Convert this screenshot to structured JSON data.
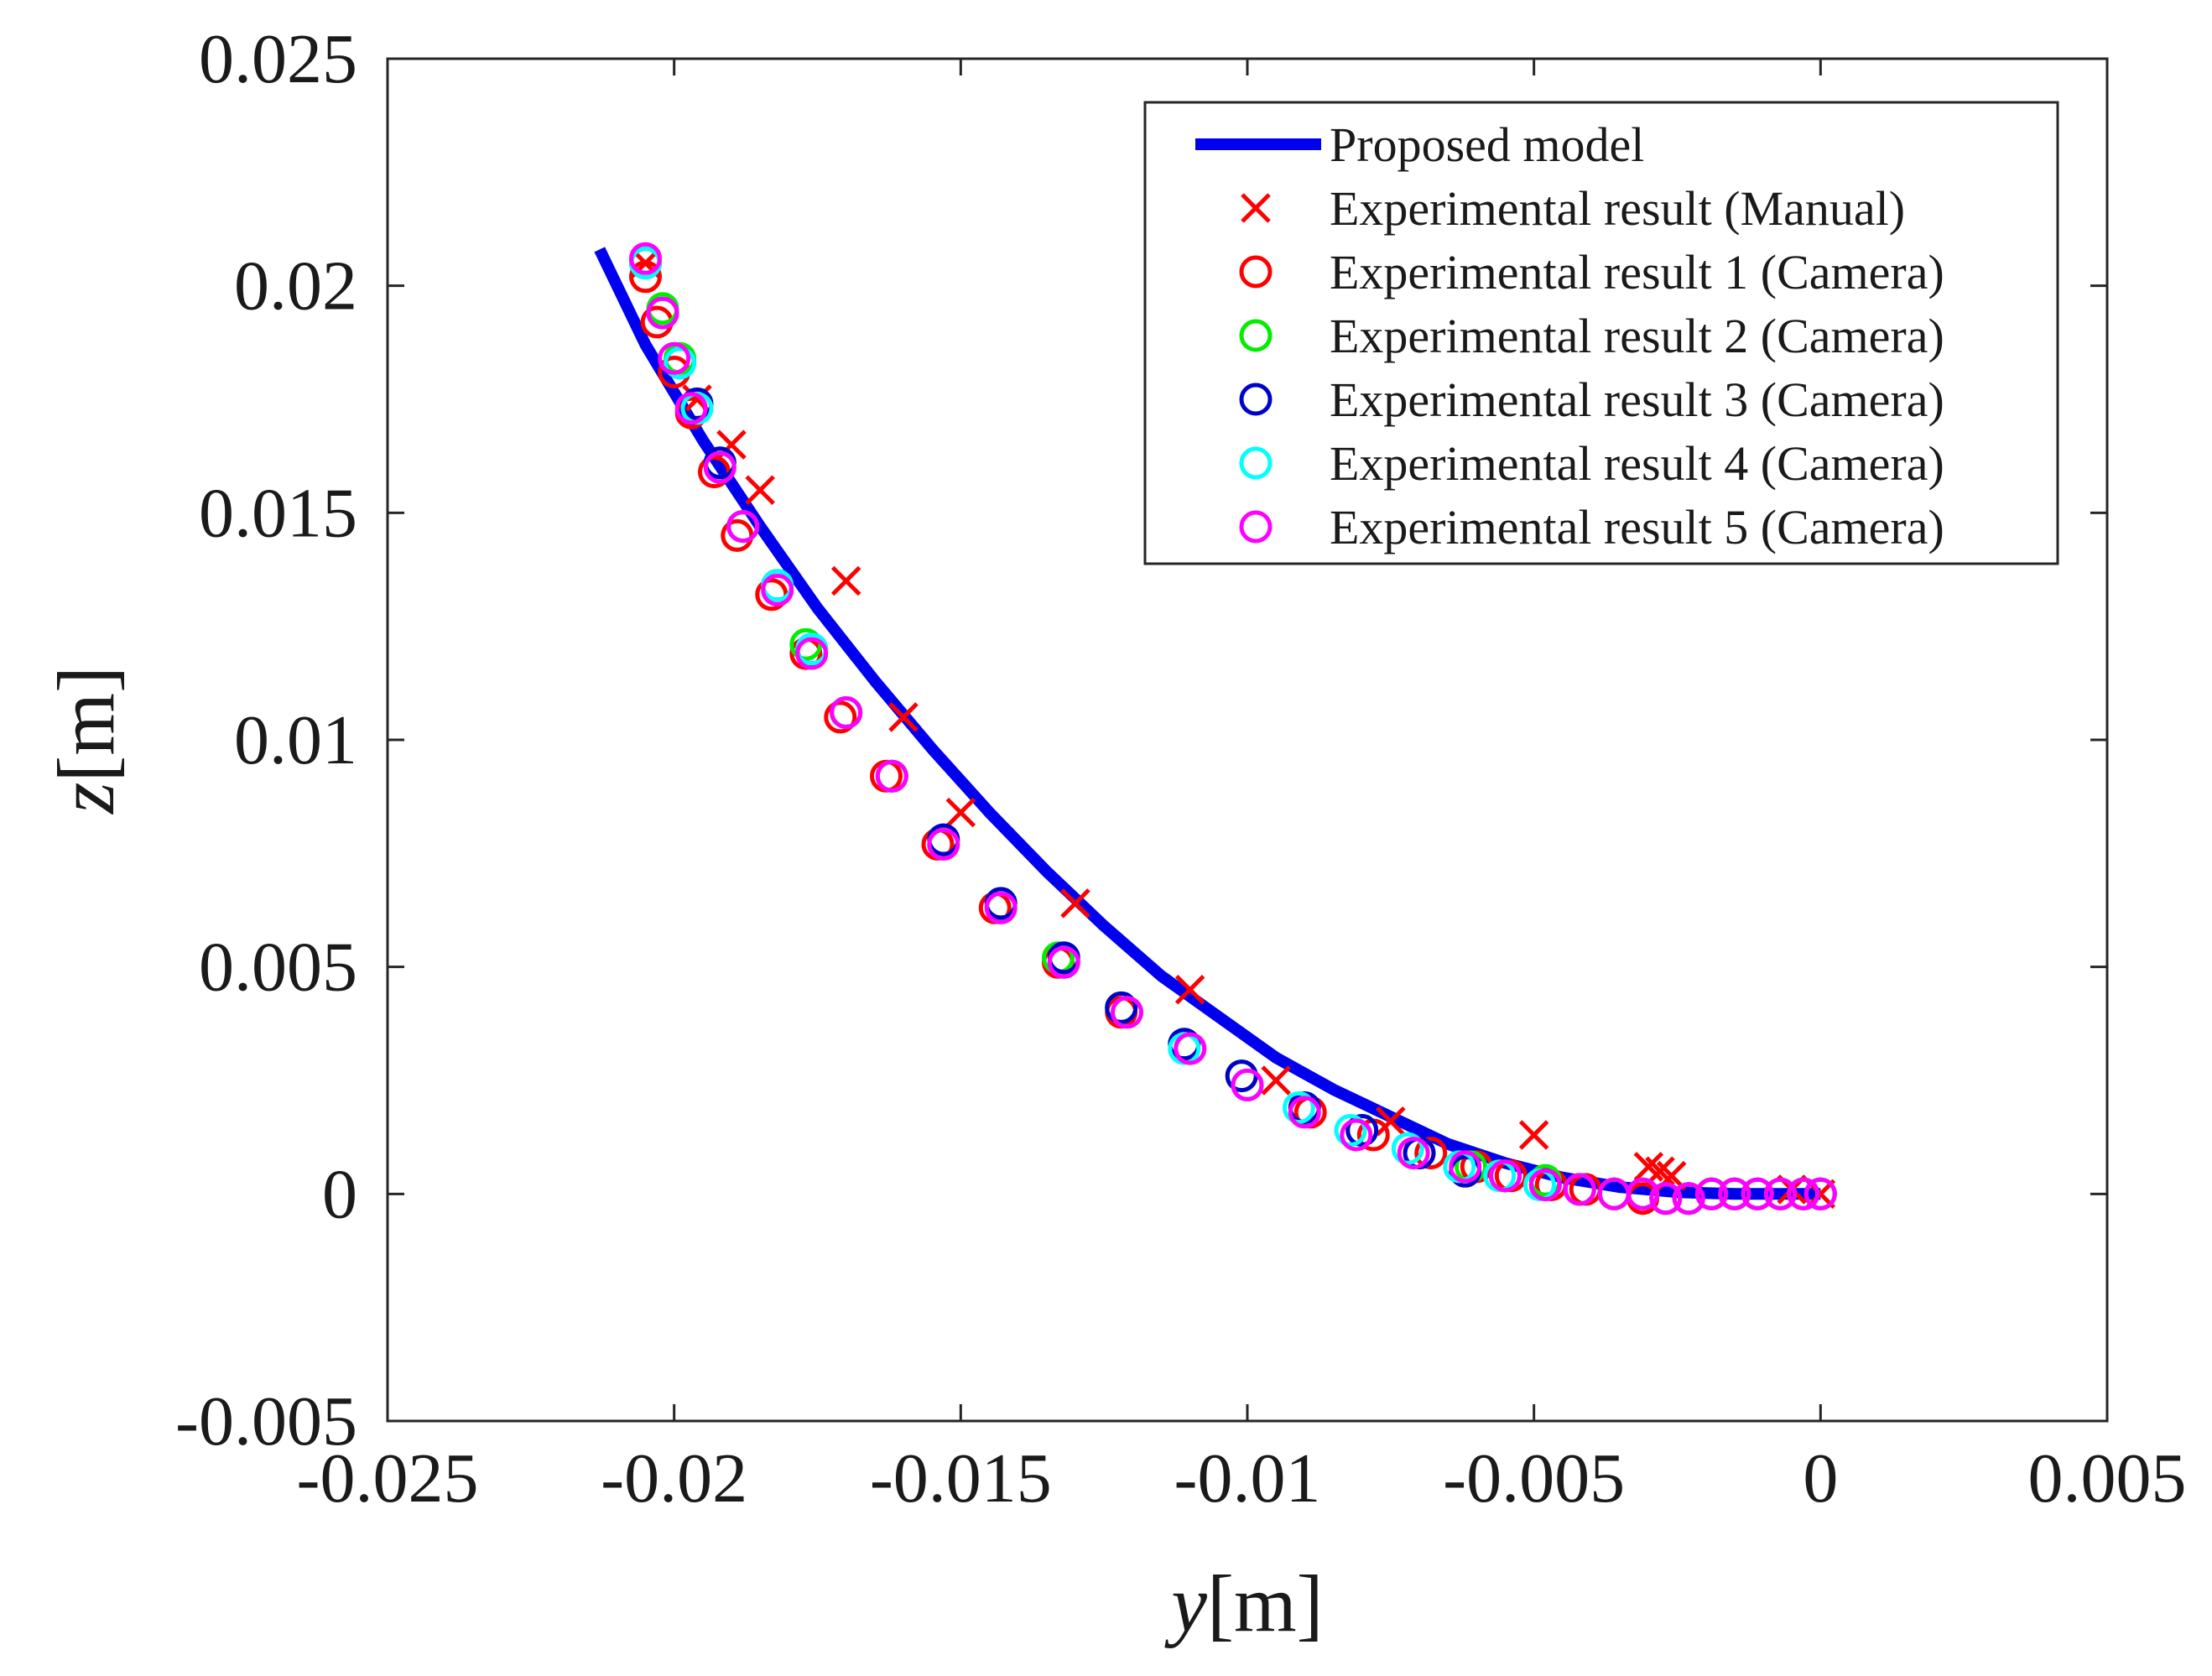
{
  "chart_data": {
    "type": "scatter",
    "title": "",
    "xlabel": {
      "var": "y",
      "unit": "[m]"
    },
    "ylabel": {
      "var": "z",
      "unit": "[m]"
    },
    "xlim": [
      -0.025,
      0.005
    ],
    "ylim": [
      -0.005,
      0.025
    ],
    "xticks": [
      -0.025,
      -0.02,
      -0.015,
      -0.01,
      -0.005,
      0,
      0.005
    ],
    "xtick_labels": [
      "-0.025",
      "-0.02",
      "-0.015",
      "-0.01",
      "-0.005",
      "0",
      "0.005"
    ],
    "yticks": [
      -0.005,
      0,
      0.005,
      0.01,
      0.015,
      0.02,
      0.025
    ],
    "ytick_labels": [
      "-0.005",
      "0",
      "0.005",
      "0.01",
      "0.015",
      "0.02",
      "0.025"
    ],
    "grid": false,
    "legend_position": "top-right",
    "series": [
      {
        "name": "Proposed model",
        "kind": "line",
        "color": "#0000ee",
        "x": [
          -0.0213,
          -0.0205,
          -0.0195,
          -0.0185,
          -0.0175,
          -0.0165,
          -0.0155,
          -0.0145,
          -0.0135,
          -0.0125,
          -0.0115,
          -0.0105,
          -0.0095,
          -0.0085,
          -0.0075,
          -0.0065,
          -0.0055,
          -0.0045,
          -0.0035,
          -0.0025,
          -0.0015,
          -0.0005,
          0.0
        ],
        "y": [
          0.0208,
          0.0187,
          0.0166,
          0.0147,
          0.0129,
          0.0113,
          0.0098,
          0.0084,
          0.0071,
          0.0059,
          0.0048,
          0.0039,
          0.003,
          0.0023,
          0.0017,
          0.0011,
          0.00068,
          0.00036,
          0.00015,
          4e-05,
          0.0,
          0.0,
          0.0
        ]
      },
      {
        "name": "Experimental result (Manual)",
        "kind": "marker-x",
        "color": "#ff0000",
        "x": [
          -0.0205,
          -0.0196,
          -0.019,
          -0.0185,
          -0.017,
          -0.016,
          -0.015,
          -0.013,
          -0.011,
          -0.0095,
          -0.0075,
          -0.005,
          -0.003,
          -0.0028,
          -0.0026,
          -0.0005,
          0.0
        ],
        "y": [
          0.0205,
          0.0175,
          0.0165,
          0.0155,
          0.0135,
          0.0105,
          0.0084,
          0.0064,
          0.0045,
          0.0025,
          0.0016,
          0.0013,
          0.0006,
          0.0005,
          0.0004,
          0.0001,
          0.0
        ]
      },
      {
        "name": "Experimental result 1 (Camera)",
        "kind": "marker-o",
        "color": "#ff0000",
        "x": [
          -0.0205,
          -0.0203,
          -0.02,
          -0.0197,
          -0.0193,
          -0.0189,
          -0.0183,
          -0.0177,
          -0.0171,
          -0.0163,
          -0.0154,
          -0.0144,
          -0.0133,
          -0.0122,
          -0.011,
          -0.01,
          -0.0089,
          -0.0078,
          -0.0068,
          -0.006,
          -0.0054,
          -0.0047,
          -0.0041,
          -0.0036,
          -0.0031,
          -0.0027,
          -0.0023,
          -0.0019,
          -0.0015,
          -0.0011,
          -0.0007,
          -0.0003,
          0.0
        ],
        "y": [
          0.0202,
          0.0192,
          0.0181,
          0.0172,
          0.0159,
          0.0145,
          0.0132,
          0.0119,
          0.0105,
          0.0092,
          0.0077,
          0.0063,
          0.0051,
          0.004,
          0.0032,
          0.0024,
          0.0018,
          0.0013,
          0.0009,
          0.0006,
          0.0004,
          0.0002,
          0.0001,
          0.0,
          -0.0001,
          -0.0001,
          -0.0001,
          0.0,
          0.0,
          0.0,
          0.0,
          0.0,
          0.0
        ]
      },
      {
        "name": "Experimental result 2 (Camera)",
        "kind": "marker-o",
        "color": "#00ee00",
        "x": [
          -0.0205,
          -0.0202,
          -0.0199,
          -0.0196,
          -0.0192,
          -0.0188,
          -0.0182,
          -0.0177,
          -0.017,
          -0.0162,
          -0.0153,
          -0.0143,
          -0.0133,
          -0.0122,
          -0.0111,
          -0.0101,
          -0.009,
          -0.008,
          -0.007,
          -0.0061,
          -0.0055,
          -0.0048,
          -0.0042,
          -0.0036,
          -0.0031,
          -0.0027,
          -0.0023,
          -0.0019,
          -0.0015,
          -0.0011,
          -0.0007,
          -0.0003,
          0.0
        ],
        "y": [
          0.0205,
          0.0195,
          0.0184,
          0.0173,
          0.0161,
          0.0147,
          0.0134,
          0.0121,
          0.0106,
          0.0092,
          0.0078,
          0.0064,
          0.0052,
          0.0041,
          0.0033,
          0.0026,
          0.0019,
          0.0014,
          0.0009,
          0.0006,
          0.0004,
          0.0003,
          0.0001,
          0.0,
          0.0,
          -0.0001,
          -0.0001,
          0.0,
          0.0,
          0.0,
          0.0,
          0.0,
          0.0
        ]
      },
      {
        "name": "Experimental result 3 (Camera)",
        "kind": "marker-o",
        "color": "#0000cc",
        "x": [
          -0.0205,
          -0.0202,
          -0.0199,
          -0.0196,
          -0.0192,
          -0.0188,
          -0.0182,
          -0.0176,
          -0.017,
          -0.0162,
          -0.0153,
          -0.0143,
          -0.0132,
          -0.0122,
          -0.0111,
          -0.0101,
          -0.009,
          -0.008,
          -0.007,
          -0.0062,
          -0.0055,
          -0.0048,
          -0.0042,
          -0.0036,
          -0.0031,
          -0.0027,
          -0.0023,
          -0.0019,
          -0.0015,
          -0.0011,
          -0.0007,
          -0.0003,
          0.0
        ],
        "y": [
          0.0205,
          0.0194,
          0.0183,
          0.0174,
          0.0161,
          0.0147,
          0.0134,
          0.012,
          0.0106,
          0.0092,
          0.0078,
          0.0064,
          0.0052,
          0.0041,
          0.0033,
          0.0026,
          0.0019,
          0.0014,
          0.0009,
          0.0005,
          0.0004,
          0.0002,
          0.0001,
          0.0,
          0.0,
          -0.0001,
          -0.0001,
          0.0,
          0.0,
          0.0,
          0.0,
          0.0,
          0.0
        ]
      },
      {
        "name": "Experimental result 4 (Camera)",
        "kind": "marker-o",
        "color": "#00ffff",
        "x": [
          -0.0205,
          -0.0202,
          -0.0199,
          -0.0196,
          -0.0192,
          -0.0188,
          -0.0182,
          -0.0176,
          -0.017,
          -0.0162,
          -0.0153,
          -0.0143,
          -0.0132,
          -0.0121,
          -0.0111,
          -0.01,
          -0.0091,
          -0.0082,
          -0.0072,
          -0.0063,
          -0.0056,
          -0.0049,
          -0.0042,
          -0.0036,
          -0.0031,
          -0.0027,
          -0.0023,
          -0.0019,
          -0.0015,
          -0.0011,
          -0.0007,
          -0.0003,
          0.0
        ],
        "y": [
          0.0205,
          0.0194,
          0.0183,
          0.0173,
          0.016,
          0.0147,
          0.0134,
          0.012,
          0.0106,
          0.0092,
          0.0077,
          0.0063,
          0.0051,
          0.004,
          0.0032,
          0.0024,
          0.0019,
          0.0014,
          0.001,
          0.0006,
          0.0004,
          0.0002,
          0.0001,
          0.0,
          0.0,
          -0.0001,
          -0.0001,
          0.0,
          0.0,
          0.0,
          0.0,
          0.0,
          0.0
        ]
      },
      {
        "name": "Experimental result 5 (Camera)",
        "kind": "marker-o",
        "color": "#ff00ff",
        "x": [
          -0.0205,
          -0.0202,
          -0.02,
          -0.0197,
          -0.0192,
          -0.0188,
          -0.0182,
          -0.0176,
          -0.017,
          -0.0162,
          -0.0153,
          -0.0143,
          -0.0132,
          -0.0121,
          -0.011,
          -0.01,
          -0.009,
          -0.0081,
          -0.0071,
          -0.0062,
          -0.0055,
          -0.0048,
          -0.0042,
          -0.0036,
          -0.0031,
          -0.0027,
          -0.0023,
          -0.0019,
          -0.0015,
          -0.0011,
          -0.0007,
          -0.0003,
          0.0
        ],
        "y": [
          0.0206,
          0.0194,
          0.0184,
          0.0173,
          0.016,
          0.0147,
          0.0133,
          0.0119,
          0.0106,
          0.0092,
          0.0077,
          0.0063,
          0.0051,
          0.004,
          0.0032,
          0.0024,
          0.0018,
          0.0013,
          0.0009,
          0.0006,
          0.0004,
          0.0002,
          0.0001,
          0.0,
          0.0,
          -0.0001,
          -0.0001,
          0.0,
          0.0,
          0.0,
          0.0,
          0.0,
          0.0
        ]
      }
    ]
  }
}
